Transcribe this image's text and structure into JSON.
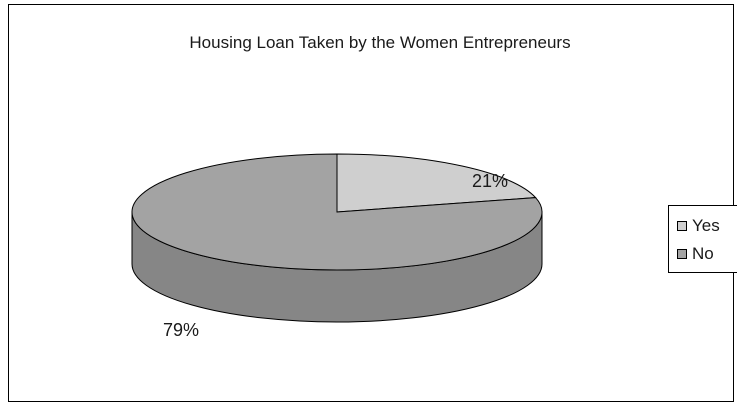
{
  "chart_data": {
    "type": "pie",
    "title": "Housing Loan Taken by the Women Entrepreneurs",
    "labels": [
      "Yes",
      "No"
    ],
    "values": [
      21,
      79
    ],
    "value_labels": [
      "21%",
      "79%"
    ],
    "colors": [
      "#cfcfcf",
      "#a3a3a3"
    ],
    "legend": {
      "position": "right",
      "entries": [
        "Yes",
        "No"
      ]
    },
    "style": "3d"
  }
}
